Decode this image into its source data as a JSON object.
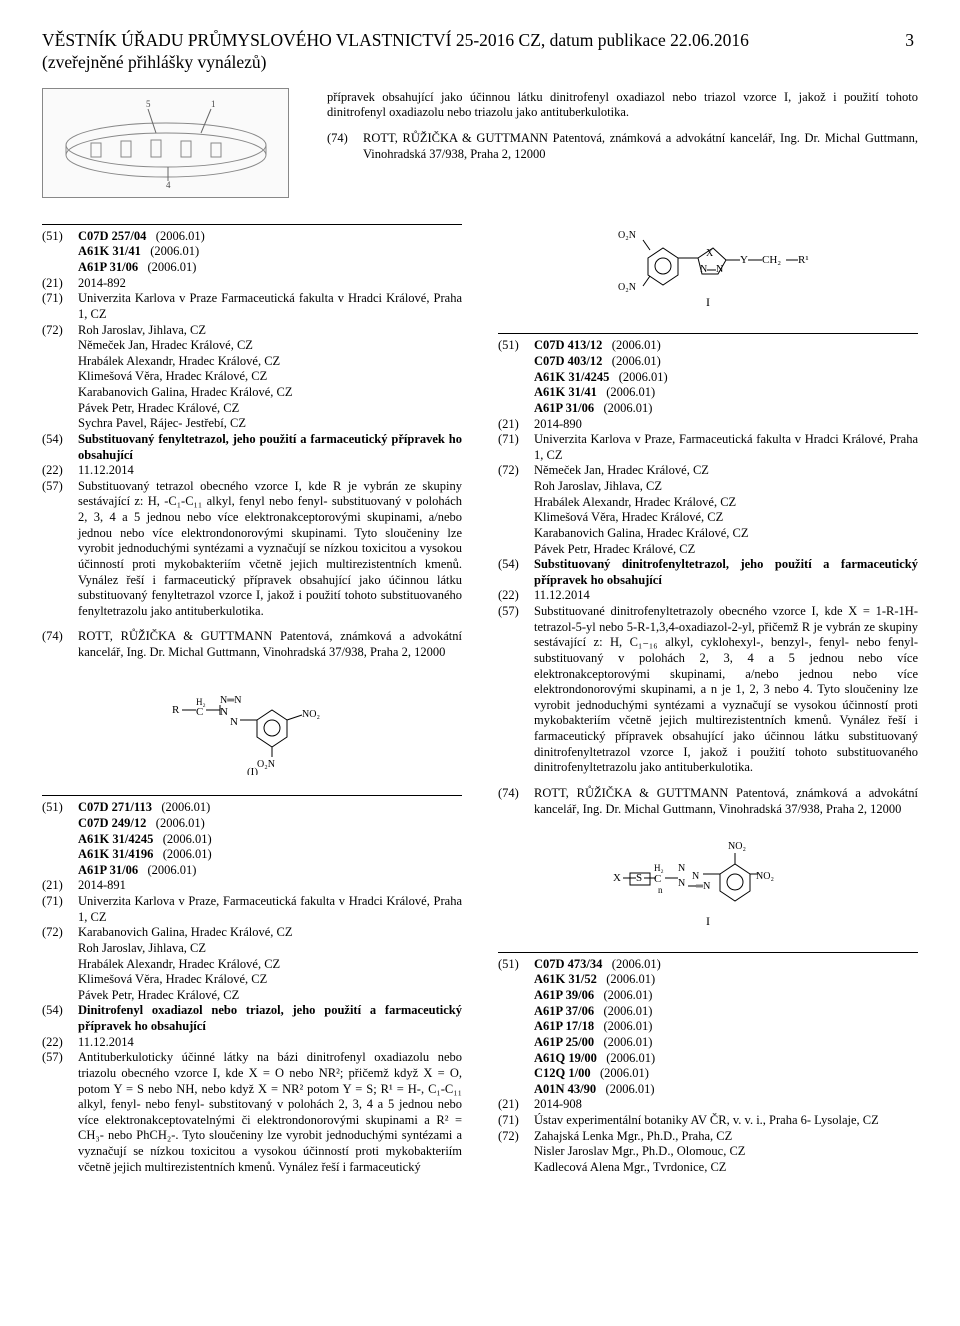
{
  "header": {
    "line1": "VĚSTNÍK ÚŘADU PRŮMYSLOVÉHO VLASTNICTVÍ 25-2016 CZ, datum publikace 22.06.2016",
    "line2": "(zveřejněné přihlášky vynálezů)",
    "page": "3"
  },
  "top": {
    "para": "přípravek obsahující jako účinnou látku dinitrofenyl oxadiazol nebo triazol vzorce I, jakož i použití tohoto dinitrofenyl oxadiazolu nebo triazolu jako antituberkulotika.",
    "c74": "(74)",
    "v74": "ROTT, RŮŽIČKA & GUTTMANN Patentová, známková a advokátní kancelář, Ing. Dr. Michal Guttmann, Vinohradská 37/938, Praha 2, 12000"
  },
  "e1": {
    "cls": [
      [
        "(51)",
        "C07D 257/04",
        "(2006.01)"
      ],
      [
        "",
        "A61K 31/41",
        "(2006.01)"
      ],
      [
        "",
        "A61P 31/06",
        "(2006.01)"
      ]
    ],
    "f21c": "(21)",
    "f21v": "2014-892",
    "f71c": "(71)",
    "f71v": "Univerzita Karlova v Praze Farmaceutická fakulta v Hradci Králové, Praha 1, CZ",
    "f72c": "(72)",
    "inv": [
      "Roh Jaroslav, Jihlava, CZ",
      "Němeček Jan, Hradec Králové, CZ",
      "Hrabálek Alexandr, Hradec Králové, CZ",
      "Klimešová Věra, Hradec Králové, CZ",
      "Karabanovich Galina, Hradec Králové, CZ",
      "Pávek Petr, Hradec Králové, CZ",
      "Sychra Pavel, Rájec- Jestřebí, CZ"
    ],
    "f54c": "(54)",
    "f54v": "Substituovaný fenyltetrazol, jeho použití a farmaceutický přípravek ho obsahující",
    "f22c": "(22)",
    "f22v": "11.12.2014",
    "f57c": "(57)",
    "f57v": "Substituovaný tetrazol obecného vzorce I, kde R je vybrán ze skupiny sestávající z: H, -C₁-C₁₁ alkyl, fenyl nebo fenyl- substituovaný v polohách 2, 3, 4 a 5 jednou nebo více elektronakceptorovými skupinami, a/nebo jednou nebo více elektrondonorovými skupinami. Tyto sloučeniny lze vyrobit jednoduchými syntézami a vyznačují se nízkou toxicitou a vysokou účinností proti mykobakteriím včetně jejich multirezistentních kmenů. Vynález řeší i farmaceutický přípravek obsahující jako účinnou látku substituovaný fenyltetrazol vzorce I, jakož i použití tohoto substituovaného fenyltetrazolu jako antituberkulotika.",
    "f74c": "(74)",
    "f74v": "ROTT, RŮŽIČKA & GUTTMANN Patentová, známková a advokátní kancelář, Ing. Dr. Michal Guttmann, Vinohradská 37/938, Praha 2, 12000",
    "chemLabel": "(I)"
  },
  "e2": {
    "cls": [
      [
        "(51)",
        "C07D 271/113",
        "(2006.01)"
      ],
      [
        "",
        "C07D 249/12",
        "(2006.01)"
      ],
      [
        "",
        "A61K 31/4245",
        "(2006.01)"
      ],
      [
        "",
        "A61K 31/4196",
        "(2006.01)"
      ],
      [
        "",
        "A61P 31/06",
        "(2006.01)"
      ]
    ],
    "f21c": "(21)",
    "f21v": "2014-891",
    "f71c": "(71)",
    "f71v": "Univerzita Karlova v Praze, Farmaceutická fakulta v Hradci Králové, Praha 1, CZ",
    "f72c": "(72)",
    "inv": [
      "Karabanovich Galina, Hradec Králové, CZ",
      "Roh Jaroslav, Jihlava, CZ",
      "Hrabálek Alexandr, Hradec Králové, CZ",
      "Klimešová Věra, Hradec Králové, CZ",
      "Pávek Petr, Hradec Králové, CZ"
    ],
    "f54c": "(54)",
    "f54v": "Dinitrofenyl oxadiazol nebo triazol, jeho použití a farmaceutický přípravek ho obsahující",
    "f22c": "(22)",
    "f22v": "11.12.2014",
    "f57c": "(57)",
    "f57v": "Antituberkuloticky účinné látky na bázi dinitrofenyl oxadiazolu nebo triazolu obecného vzorce I, kde X = O nebo NR²; přičemž když X = O, potom Y = S nebo NH, nebo když X = NR² potom Y = S; R¹ = H-, C₁-C₁₁ alkyl, fenyl- nebo fenyl- substitovaný v polohách 2, 3, 4 a 5 jednou nebo více elektronakceptovatelnými či elektrondonorovými skupinami a R² = CH₃- nebo PhCH₂-. Tyto sloučeniny lze vyrobit jednoduchými syntézami a vyznačují se nízkou toxicitou a vysokou účinností proti mykobakteriím včetně  jejich  multirezistentních  kmenů.  Vynález  řeší  i farmaceutický"
  },
  "e3": {
    "chemLabel": "I",
    "cls": [
      [
        "(51)",
        "C07D 413/12",
        "(2006.01)"
      ],
      [
        "",
        "C07D 403/12",
        "(2006.01)"
      ],
      [
        "",
        "A61K 31/4245",
        "(2006.01)"
      ],
      [
        "",
        "A61K 31/41",
        "(2006.01)"
      ],
      [
        "",
        "A61P 31/06",
        "(2006.01)"
      ]
    ],
    "f21c": "(21)",
    "f21v": "2014-890",
    "f71c": "(71)",
    "f71v": "Univerzita Karlova v Praze, Farmaceutická fakulta v Hradci Králové, Praha 1, CZ",
    "f72c": "(72)",
    "inv": [
      "Němeček Jan, Hradec Králové, CZ",
      "Roh Jaroslav, Jihlava, CZ",
      "Hrabálek Alexandr, Hradec Králové, CZ",
      "Klimešová Věra, Hradec Králové, CZ",
      "Karabanovich Galina, Hradec Králové, CZ",
      "Pávek Petr, Hradec Králové, CZ"
    ],
    "f54c": "(54)",
    "f54v": "Substituovaný dinitrofenyltetrazol, jeho použití a farmaceutický přípravek ho obsahující",
    "f22c": "(22)",
    "f22v": "11.12.2014",
    "f57c": "(57)",
    "f57v": "Substituované dinitrofenyltetrazoly obecného vzorce I, kde X = 1-R-1H-tetrazol-5-yl nebo 5-R-1,3,4-oxadiazol-2-yl, přičemž R je vybrán ze skupiny sestávající z: H, C₁₋₁₆ alkyl, cyklohexyl-, benzyl-, fenyl- nebo fenyl- substituovaný v polohách 2, 3, 4 a 5 jednou nebo více elektronakceptorovými skupinami, a/nebo jednou nebo více elektrondonorovými skupinami, a n je 1, 2, 3 nebo 4. Tyto sloučeniny lze vyrobit jednoduchými syntézami a vyznačují se vysokou účinností proti mykobakteriím včetně jejich multirezistentních kmenů. Vynález řeší i farmaceutický přípravek obsahující jako účinnou látku substituovaný dinitrofenyltetrazol vzorce I, jakož i použití tohoto substituovaného dinitrofenyltetrazolu jako antituberkulotika.",
    "f74c": "(74)",
    "f74v": "ROTT, RŮŽIČKA & GUTTMANN Patentová, známková a advokátní kancelář, Ing. Dr. Michal Guttmann, Vinohradská 37/938, Praha 2, 12000",
    "chemLabel2": "I"
  },
  "e4": {
    "cls": [
      [
        "(51)",
        "C07D 473/34",
        "(2006.01)"
      ],
      [
        "",
        "A61K 31/52",
        "(2006.01)"
      ],
      [
        "",
        "A61P 39/06",
        "(2006.01)"
      ],
      [
        "",
        "A61P 37/06",
        "(2006.01)"
      ],
      [
        "",
        "A61P 17/18",
        "(2006.01)"
      ],
      [
        "",
        "A61P 25/00",
        "(2006.01)"
      ],
      [
        "",
        "A61Q 19/00",
        "(2006.01)"
      ],
      [
        "",
        "C12Q 1/00",
        "(2006.01)"
      ],
      [
        "",
        "A01N 43/90",
        "(2006.01)"
      ]
    ],
    "f21c": "(21)",
    "f21v": "2014-908",
    "f71c": "(71)",
    "f71v": "Ústav experimentální botaniky AV ČR, v. v. i., Praha 6- Lysolaje, CZ",
    "f72c": "(72)",
    "inv": [
      "Zahajská Lenka Mgr., Ph.D., Praha, CZ",
      "Nisler Jaroslav Mgr., Ph.D., Olomouc, CZ",
      "Kadlecová Alena Mgr., Tvrdonice, CZ"
    ]
  }
}
